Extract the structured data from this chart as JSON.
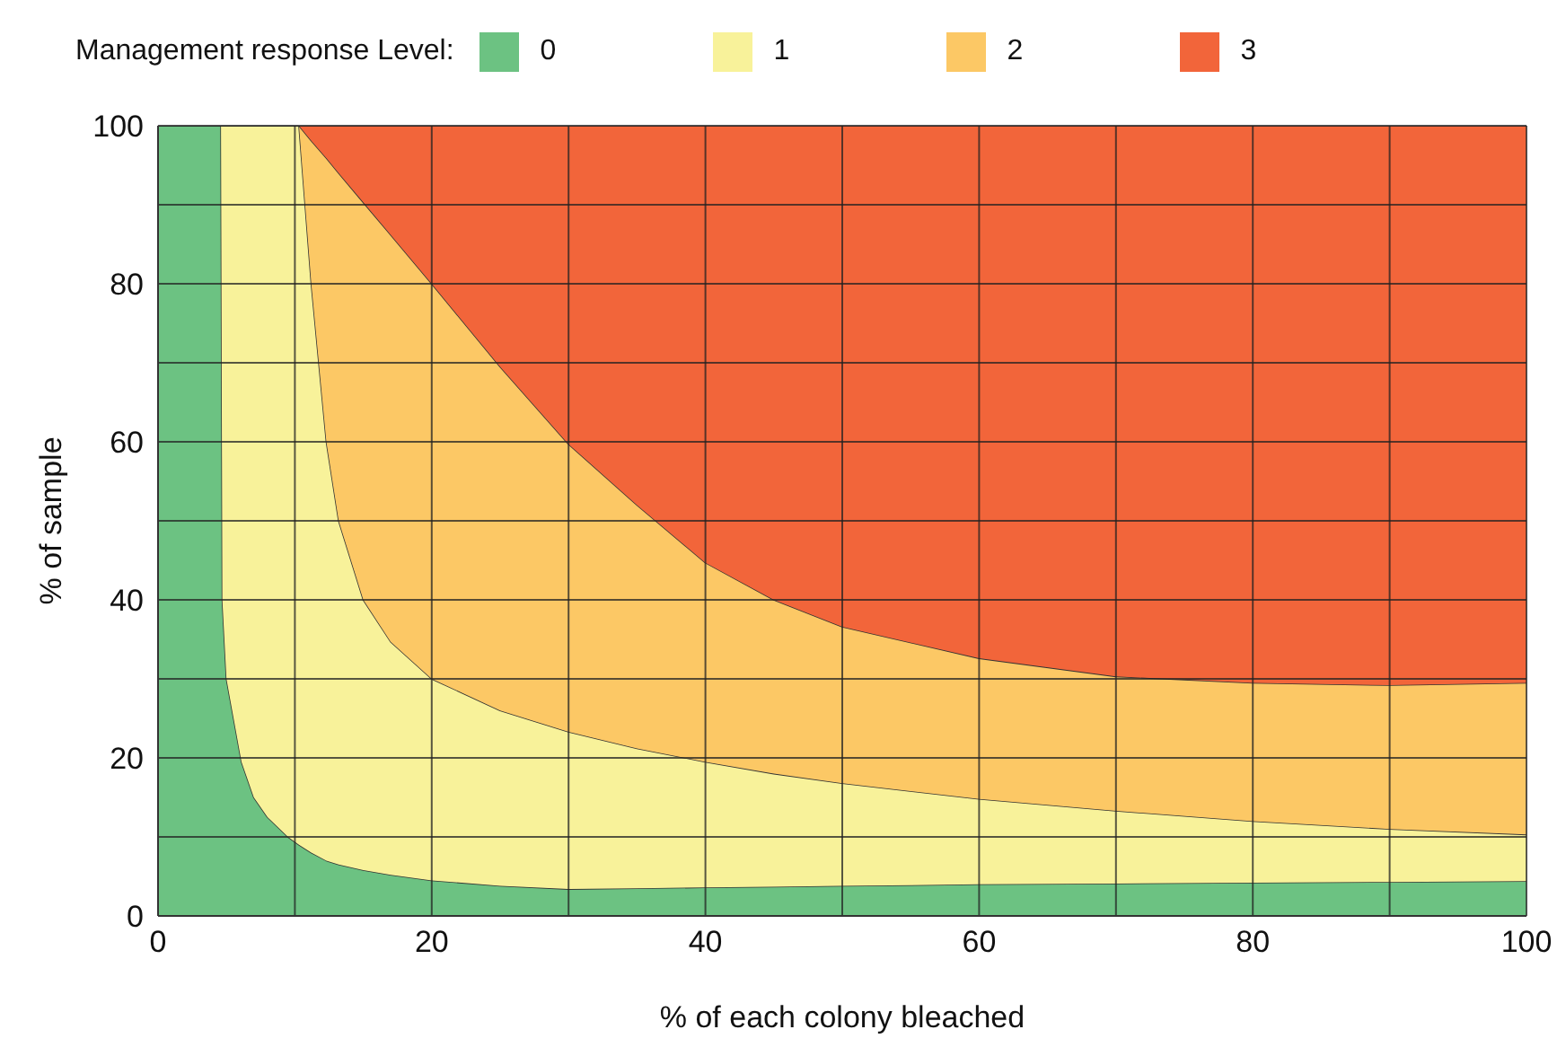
{
  "chart_data": {
    "type": "area",
    "stacked": true,
    "xlabel": "% of each colony bleached",
    "ylabel": "% of sample",
    "legend_title": "Management response Level:",
    "legend": "top",
    "grid": true,
    "x": [
      0,
      4.6,
      4.7,
      5.0,
      6.1,
      7,
      8,
      9.5,
      10.3,
      11.2,
      12.3,
      13.2,
      15,
      17,
      20,
      25,
      30,
      35,
      40,
      45,
      50,
      60,
      70,
      80,
      90,
      100
    ],
    "series": [
      {
        "name": "0",
        "color": "#6cc282",
        "values": [
          100,
          100,
          40,
          30,
          19.5,
          15,
          12.5,
          10,
          9,
          8,
          7,
          6.5,
          5.8,
          5.2,
          4.5,
          3.8,
          3.4,
          3.5,
          3.6,
          3.7,
          3.8,
          4.0,
          4.1,
          4.2,
          4.3,
          4.4
        ]
      },
      {
        "name": "1",
        "color": "#f8f29a",
        "values": [
          0,
          0,
          60,
          70,
          80.5,
          85,
          87.5,
          90,
          91,
          72,
          53,
          43.5,
          34.2,
          29.5,
          25.5,
          22.2,
          19.9,
          17.7,
          15.9,
          14.3,
          13,
          10.8,
          9.2,
          7.8,
          6.7,
          5.9
        ]
      },
      {
        "name": "2",
        "color": "#fcc865",
        "values": [
          0,
          0,
          0,
          0,
          0,
          0,
          0,
          0,
          0,
          18.1,
          35.9,
          44,
          50.3,
          51.5,
          50,
          43.5,
          36.4,
          30.8,
          25.2,
          22,
          19.8,
          17.8,
          17,
          17.5,
          18.2,
          19.2
        ]
      },
      {
        "name": "3",
        "color": "#f2653a",
        "values": [
          0,
          0,
          0,
          0,
          0,
          0,
          0,
          0,
          0,
          1.9,
          4.1,
          6,
          9.7,
          13.8,
          20,
          30.5,
          40.3,
          48,
          55.3,
          60,
          63.4,
          67.4,
          69.7,
          70.5,
          70.8,
          70.5
        ]
      }
    ],
    "xlim": [
      0,
      100
    ],
    "xticks": [
      0,
      {
        "value": 10,
        "label": null
      },
      20,
      {
        "value": 30,
        "label": null
      },
      40,
      {
        "value": 50,
        "label": null
      },
      60,
      {
        "value": 70,
        "label": null
      },
      80,
      {
        "value": 90,
        "label": null
      },
      100
    ],
    "ylim": [
      0,
      100
    ],
    "yticks": [
      0,
      {
        "value": 10,
        "label": null
      },
      20,
      {
        "value": 30,
        "label": null
      },
      40,
      {
        "value": 50,
        "label": null
      },
      60,
      {
        "value": 70,
        "label": null
      },
      80,
      {
        "value": 90,
        "label": null
      },
      100
    ]
  }
}
